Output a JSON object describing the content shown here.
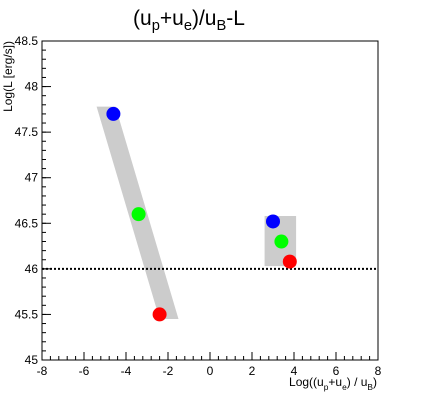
{
  "chart_data": {
    "type": "scatter",
    "title": "(u_p+u_e)/u_B-L",
    "title_parts": {
      "a": "(u",
      "b": "p",
      "c": "+u",
      "d": "e",
      "e": ")/u",
      "f": "B",
      "g": "-L"
    },
    "xlabel_parts": {
      "a": "Log((u",
      "b": "p",
      "c": "+u",
      "d": "e",
      "e": ") / u",
      "f": "B",
      "g": ")"
    },
    "ylabel": "Log(L [erg/s])",
    "xlim": [
      -8,
      8
    ],
    "ylim": [
      45,
      48.5
    ],
    "xticks": [
      -8,
      -6,
      -4,
      -2,
      0,
      2,
      4,
      6,
      8
    ],
    "yticks": [
      45,
      45.5,
      46,
      46.5,
      47,
      47.5,
      48,
      48.5
    ],
    "xtick_labels": [
      "-8",
      "-6",
      "-4",
      "-2",
      "0",
      "2",
      "4",
      "6",
      "8"
    ],
    "ytick_labels": [
      "45",
      "45.5",
      "46",
      "46.5",
      "47",
      "47.5",
      "48",
      "48.5"
    ],
    "grid": false,
    "reference_line": {
      "y": 46.0,
      "style": "dotted",
      "color": "#000000"
    },
    "bands": [
      {
        "name": "left-band",
        "polygon": [
          [
            -5.4,
            47.78
          ],
          [
            -4.5,
            47.78
          ],
          [
            -1.5,
            45.45
          ],
          [
            -2.4,
            45.45
          ]
        ],
        "color": "#cccccc"
      },
      {
        "name": "right-band",
        "polygon": [
          [
            2.6,
            46.58
          ],
          [
            4.1,
            46.58
          ],
          [
            4.1,
            46.03
          ],
          [
            2.6,
            46.03
          ]
        ],
        "color": "#cccccc"
      }
    ],
    "points": [
      {
        "x": -4.6,
        "y": 47.7,
        "color": "#0000ff"
      },
      {
        "x": -3.4,
        "y": 46.6,
        "color": "#00ff00"
      },
      {
        "x": -2.4,
        "y": 45.5,
        "color": "#ff0000"
      },
      {
        "x": 3.0,
        "y": 46.52,
        "color": "#0000ff"
      },
      {
        "x": 3.4,
        "y": 46.3,
        "color": "#00ff00"
      },
      {
        "x": 3.8,
        "y": 46.08,
        "color": "#ff0000"
      }
    ]
  }
}
